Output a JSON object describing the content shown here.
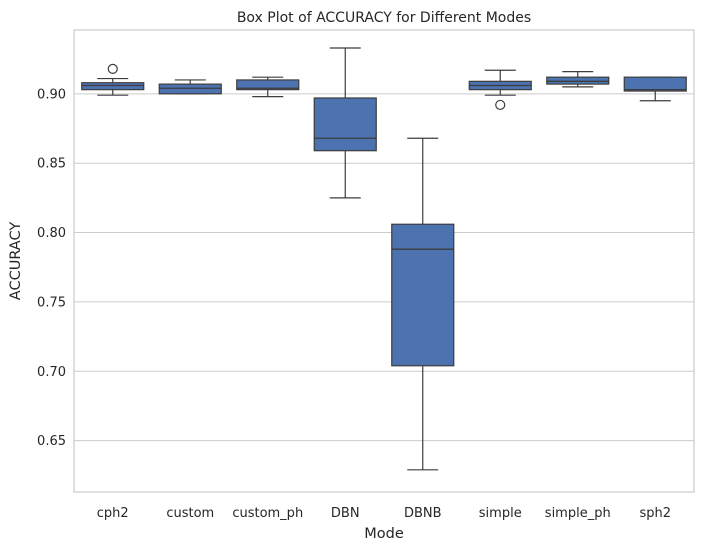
{
  "chart_data": {
    "type": "box",
    "title": "Box Plot of ACCURACY for Different Modes",
    "xlabel": "Mode",
    "ylabel": "ACCURACY",
    "ylim": [
      0.613,
      0.946
    ],
    "yticks": [
      0.65,
      0.7,
      0.75,
      0.8,
      0.85,
      0.9
    ],
    "ytick_labels": [
      "0.65",
      "0.70",
      "0.75",
      "0.80",
      "0.85",
      "0.90"
    ],
    "grid": "horizontal",
    "box_color": "#4c72b0",
    "categories": [
      "cph2",
      "custom",
      "custom_ph",
      "DBN",
      "DBNB",
      "simple",
      "simple_ph",
      "sph2"
    ],
    "boxes": [
      {
        "min": 0.899,
        "q1": 0.903,
        "median": 0.906,
        "q3": 0.908,
        "max": 0.911,
        "fliers": [
          0.918
        ]
      },
      {
        "min": 0.9,
        "q1": 0.9,
        "median": 0.904,
        "q3": 0.907,
        "max": 0.91,
        "fliers": []
      },
      {
        "min": 0.898,
        "q1": 0.903,
        "median": 0.904,
        "q3": 0.91,
        "max": 0.912,
        "fliers": []
      },
      {
        "min": 0.825,
        "q1": 0.859,
        "median": 0.868,
        "q3": 0.897,
        "max": 0.933,
        "fliers": []
      },
      {
        "min": 0.629,
        "q1": 0.704,
        "median": 0.788,
        "q3": 0.806,
        "max": 0.868,
        "fliers": []
      },
      {
        "min": 0.899,
        "q1": 0.903,
        "median": 0.906,
        "q3": 0.909,
        "max": 0.917,
        "fliers": [
          0.892
        ]
      },
      {
        "min": 0.905,
        "q1": 0.907,
        "median": 0.909,
        "q3": 0.912,
        "max": 0.916,
        "fliers": []
      },
      {
        "min": 0.895,
        "q1": 0.902,
        "median": 0.903,
        "q3": 0.912,
        "max": 0.912,
        "fliers": []
      }
    ]
  }
}
